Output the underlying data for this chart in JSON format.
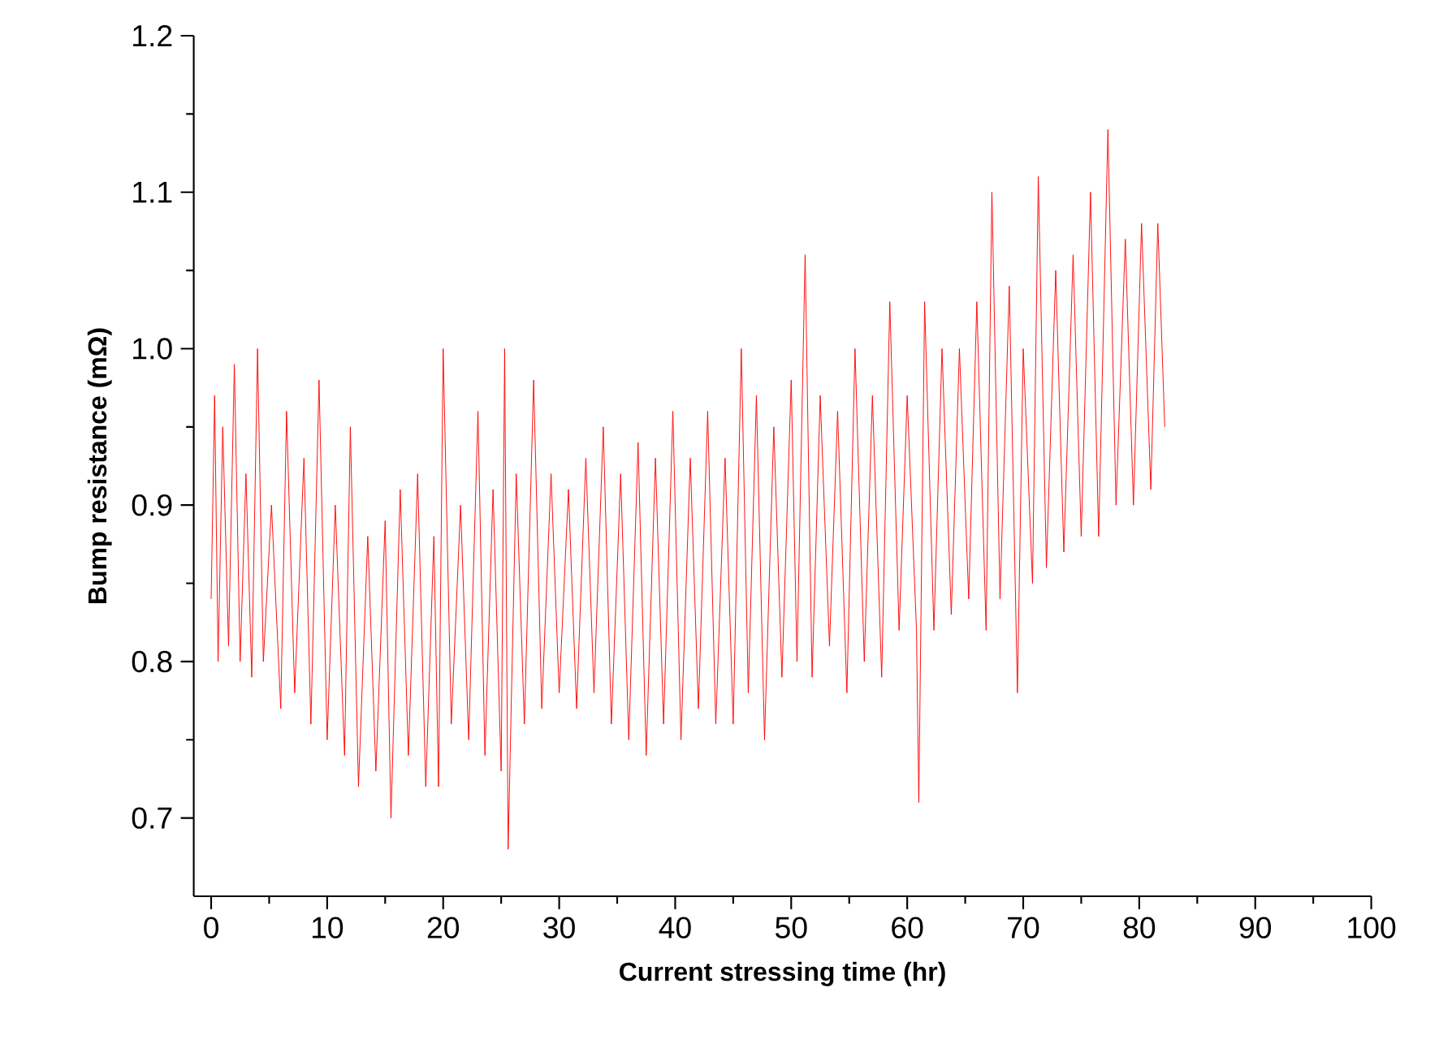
{
  "chart_data": {
    "type": "line",
    "xlabel": "Current stressing time (hr)",
    "ylabel": "Bump resistance (mΩ)",
    "xlim": [
      -1.5,
      100
    ],
    "ylim": [
      0.65,
      1.2
    ],
    "xticks": [
      0,
      10,
      20,
      30,
      40,
      50,
      60,
      70,
      80,
      90,
      100
    ],
    "yticks": [
      0.7,
      0.8,
      0.9,
      {
        "value": 1,
        "label": "1.0"
      },
      1.1,
      1.2
    ],
    "grid": false,
    "marker": "none",
    "line_style": "solid",
    "series": [
      {
        "color": "#ff0000",
        "x": [
          0.0,
          0.3,
          0.6,
          1.0,
          1.5,
          2.0,
          2.5,
          3.0,
          3.5,
          4.0,
          4.5,
          5.2,
          6.0,
          6.5,
          7.2,
          8.0,
          8.6,
          9.3,
          10.0,
          10.7,
          11.5,
          12.0,
          12.7,
          13.5,
          14.2,
          15.0,
          15.5,
          16.3,
          17.0,
          17.8,
          18.5,
          19.2,
          19.6,
          20.0,
          20.7,
          21.5,
          22.2,
          23.0,
          23.6,
          24.3,
          25.0,
          25.3,
          25.6,
          26.3,
          27.0,
          27.8,
          28.5,
          29.3,
          30.0,
          30.8,
          31.5,
          32.3,
          33.0,
          33.8,
          34.5,
          35.3,
          36.0,
          36.8,
          37.5,
          38.3,
          39.0,
          39.8,
          40.5,
          41.3,
          42.0,
          42.8,
          43.5,
          44.3,
          45.0,
          45.7,
          46.3,
          47.0,
          47.7,
          48.5,
          49.2,
          50.0,
          50.5,
          51.2,
          51.8,
          52.5,
          53.3,
          54.0,
          54.8,
          55.5,
          56.3,
          57.0,
          57.8,
          58.5,
          59.3,
          60.0,
          60.8,
          61.0,
          61.5,
          62.3,
          63.0,
          63.8,
          64.5,
          65.3,
          66.0,
          66.8,
          67.3,
          68.0,
          68.8,
          69.5,
          70.0,
          70.8,
          71.3,
          72.0,
          72.8,
          73.5,
          74.3,
          75.0,
          75.8,
          76.5,
          77.3,
          78.0,
          78.8,
          79.5,
          80.2,
          81.0,
          81.6,
          82.2
        ],
        "values": [
          0.84,
          0.97,
          0.8,
          0.95,
          0.81,
          0.99,
          0.8,
          0.92,
          0.79,
          1.0,
          0.8,
          0.9,
          0.77,
          0.96,
          0.78,
          0.93,
          0.76,
          0.98,
          0.75,
          0.9,
          0.74,
          0.95,
          0.72,
          0.88,
          0.73,
          0.89,
          0.7,
          0.91,
          0.74,
          0.92,
          0.72,
          0.88,
          0.72,
          1.0,
          0.76,
          0.9,
          0.75,
          0.96,
          0.74,
          0.91,
          0.73,
          1.0,
          0.68,
          0.92,
          0.76,
          0.98,
          0.77,
          0.92,
          0.78,
          0.91,
          0.77,
          0.93,
          0.78,
          0.95,
          0.76,
          0.92,
          0.75,
          0.94,
          0.74,
          0.93,
          0.76,
          0.96,
          0.75,
          0.93,
          0.77,
          0.96,
          0.76,
          0.93,
          0.76,
          1.0,
          0.78,
          0.97,
          0.75,
          0.95,
          0.79,
          0.98,
          0.8,
          1.06,
          0.79,
          0.97,
          0.81,
          0.96,
          0.78,
          1.0,
          0.8,
          0.97,
          0.79,
          1.03,
          0.82,
          0.97,
          0.82,
          0.71,
          1.03,
          0.82,
          1.0,
          0.83,
          1.0,
          0.84,
          1.03,
          0.82,
          1.1,
          0.84,
          1.04,
          0.78,
          1.0,
          0.85,
          1.11,
          0.86,
          1.05,
          0.87,
          1.06,
          0.88,
          1.1,
          0.88,
          1.14,
          0.9,
          1.07,
          0.9,
          1.08,
          0.91,
          1.08,
          0.95
        ]
      }
    ]
  }
}
